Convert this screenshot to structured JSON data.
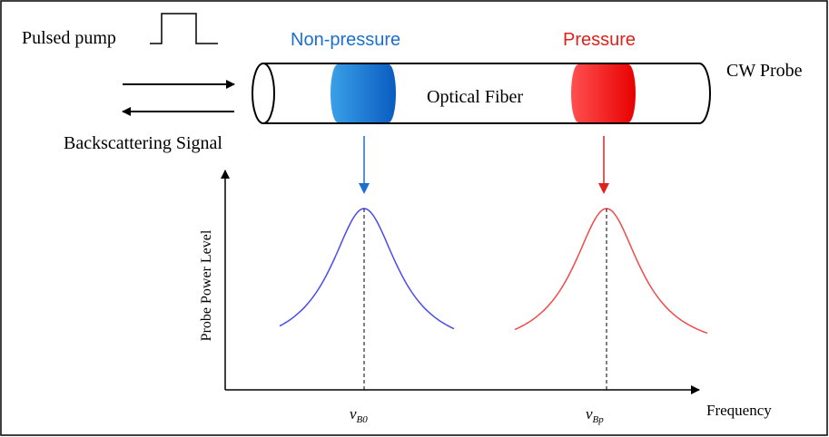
{
  "labels": {
    "pulsed_pump": "Pulsed pump",
    "non_pressure": "Non-pressure",
    "pressure": "Pressure",
    "cw_probe": "CW Probe",
    "optical_fiber": "Optical Fiber",
    "backscattering": "Backscattering Signal"
  },
  "plot": {
    "y_axis_label": "Probe Power Level",
    "x_axis_label": "Frequency",
    "peaks": [
      {
        "symbol": "v",
        "subscript": "B0"
      },
      {
        "symbol": "v",
        "subscript": "Bp"
      }
    ]
  }
}
